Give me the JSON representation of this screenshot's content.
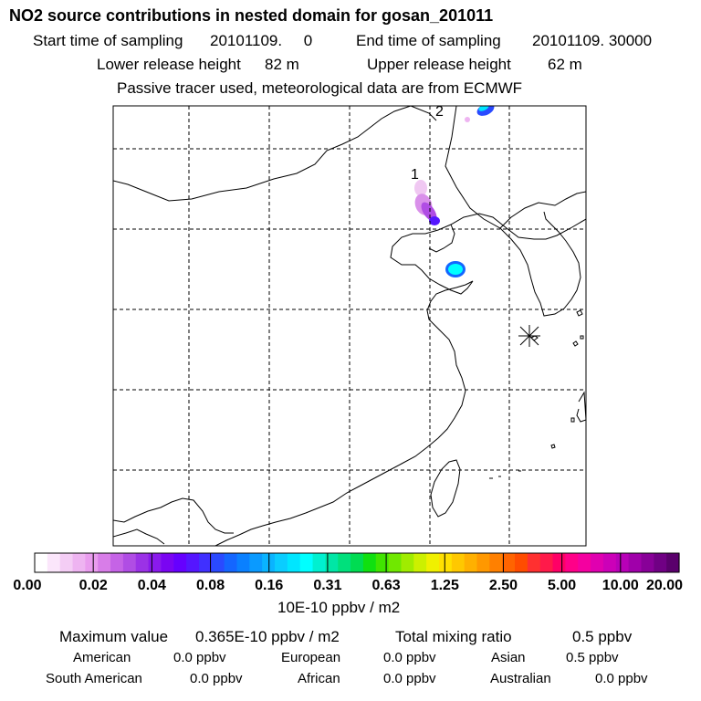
{
  "title": "NO2 source contributions in nested domain for gosan_201011",
  "sampling": {
    "start_label": "Start time of sampling",
    "start_value": "20101109.     0",
    "end_label": "End time of sampling",
    "end_value": "20101109. 30000"
  },
  "release": {
    "lower_label": "Lower release height",
    "lower_value": "82 m",
    "upper_label": "Upper release height",
    "upper_value": "62 m"
  },
  "note": "Passive tracer used, meteorological data are from ECMWF",
  "chart_data": {
    "type": "heatmap",
    "map_markers": [
      "1",
      "2"
    ],
    "colorbar": {
      "tick_labels": [
        "0.00",
        "0.02",
        "0.04",
        "0.08",
        "0.16",
        "0.31",
        "0.63",
        "1.25",
        "2.50",
        "5.00",
        "10.00",
        "20.00"
      ],
      "units": "10E-10 ppbv / m2",
      "colors": [
        "#ffffff",
        "#fbe6fb",
        "#f4cdf5",
        "#eeb4f1",
        "#e99cee",
        "#d87de8",
        "#c563e6",
        "#b04de4",
        "#9b32e6",
        "#8a1aec",
        "#7a05f2",
        "#6600ff",
        "#5516ff",
        "#4030ff",
        "#2a4aff",
        "#1466ff",
        "#0a80ff",
        "#0a9aff",
        "#0ab4ff",
        "#0acdff",
        "#00e6ff",
        "#00ffff",
        "#00f0d0",
        "#00e6a6",
        "#00e07c",
        "#00dc52",
        "#10e010",
        "#40e400",
        "#70e800",
        "#a0ec00",
        "#ccf000",
        "#f0f000",
        "#ffe000",
        "#ffc800",
        "#ffb000",
        "#ff9800",
        "#ff8000",
        "#ff6400",
        "#ff4c00",
        "#ff3030",
        "#ff1a4a",
        "#ff0066",
        "#ff0088",
        "#f400a0",
        "#e000b0",
        "#cc00b8",
        "#b800b8",
        "#a000aa",
        "#880098",
        "#700084",
        "#5a006c"
      ]
    }
  },
  "stats": {
    "max_label": "Maximum value",
    "max_value": "0.365E-10 ppbv / m2",
    "total_label": "Total mixing ratio",
    "total_value": "0.5 ppbv"
  },
  "sources": [
    {
      "name": "American",
      "value": "0.0 ppbv"
    },
    {
      "name": "European",
      "value": "0.0 ppbv"
    },
    {
      "name": "Asian",
      "value": "0.5 ppbv"
    },
    {
      "name": "South American",
      "value": "0.0 ppbv"
    },
    {
      "name": "African",
      "value": "0.0 ppbv"
    },
    {
      "name": "Australian",
      "value": "0.0 ppbv"
    }
  ]
}
